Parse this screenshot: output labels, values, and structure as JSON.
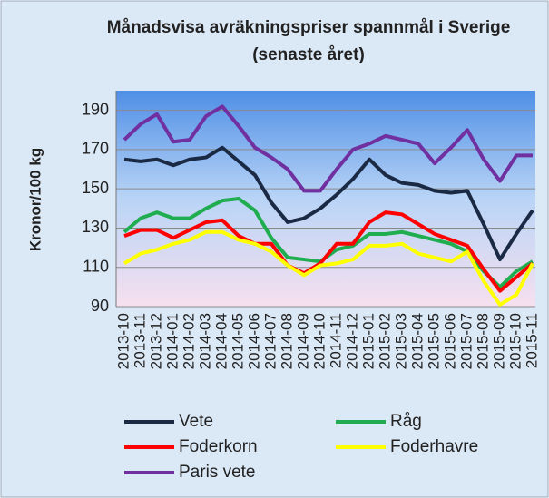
{
  "chart_data": {
    "type": "line",
    "title": "Månadsvisa avräkningspriser spannmål i Sverige (senaste året)",
    "y_label": "Kronor/100 kg",
    "categories": [
      "2013-10",
      "2013-11",
      "2013-12",
      "2014-01",
      "2014-02",
      "2014-03",
      "2014-04",
      "2014-05",
      "2014-06",
      "2014-07",
      "2014-08",
      "2014-09",
      "2014-10",
      "2014-11",
      "2014-12",
      "2015-01",
      "2015-02",
      "2015-03",
      "2015-04",
      "2015-05",
      "2015-06",
      "2015-07",
      "2015-08",
      "2015-09",
      "2015-10",
      "2015-11"
    ],
    "series": [
      {
        "name": "Vete",
        "color": "#1b2a44",
        "values": [
          165,
          164,
          165,
          162,
          165,
          166,
          171,
          164,
          157,
          143,
          133,
          135,
          140,
          147,
          155,
          165,
          157,
          153,
          152,
          149,
          148,
          149,
          132,
          114,
          127,
          139
        ]
      },
      {
        "name": "Råg",
        "color": "#1fad4f",
        "values": [
          128,
          135,
          138,
          135,
          135,
          140,
          144,
          145,
          139,
          125,
          115,
          114,
          113,
          119,
          121,
          127,
          127,
          128,
          126,
          124,
          122,
          118,
          108,
          100,
          108,
          113
        ]
      },
      {
        "name": "Foderkorn",
        "color": "#ff0000",
        "values": [
          126,
          129,
          129,
          125,
          129,
          133,
          134,
          126,
          122,
          122,
          111,
          107,
          112,
          122,
          122,
          133,
          138,
          137,
          132,
          127,
          124,
          121,
          109,
          98,
          105,
          112
        ]
      },
      {
        "name": "Foderhavre",
        "color": "#ffff00",
        "values": [
          112,
          117,
          119,
          122,
          124,
          128,
          128,
          124,
          122,
          118,
          111,
          106,
          111,
          112,
          114,
          121,
          121,
          122,
          117,
          115,
          113,
          118,
          103,
          91,
          96,
          112
        ]
      },
      {
        "name": "Paris vete",
        "color": "#7030a0",
        "values": [
          175,
          183,
          188,
          174,
          175,
          187,
          192,
          182,
          171,
          166,
          160,
          149,
          149,
          160,
          170,
          173,
          177,
          175,
          173,
          163,
          171,
          180,
          165,
          154,
          167,
          167
        ]
      }
    ],
    "ylim": [
      90,
      200
    ],
    "yticks": [
      90,
      110,
      130,
      150,
      170,
      190
    ],
    "grid": true
  }
}
